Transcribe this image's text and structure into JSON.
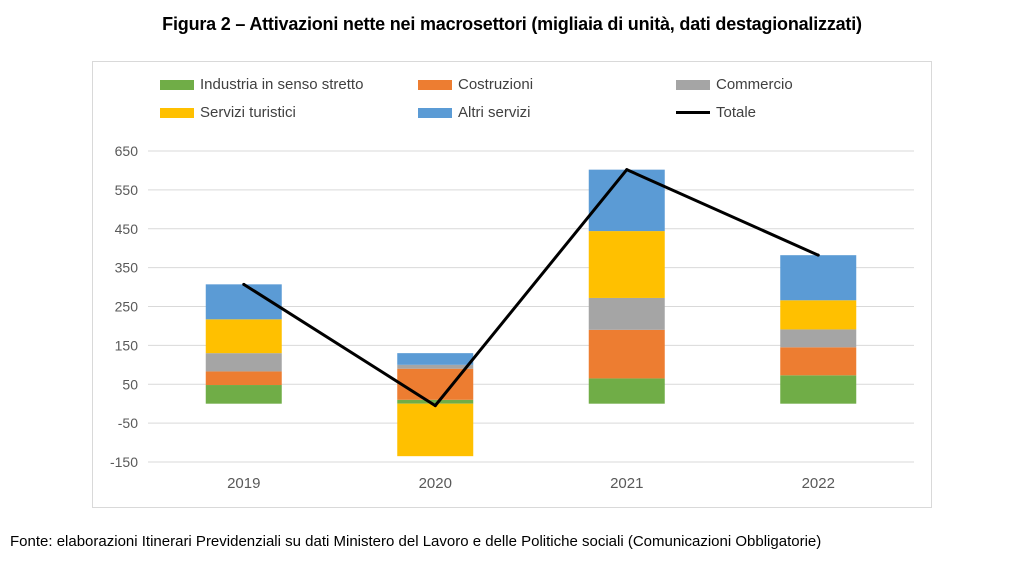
{
  "title": "Figura 2 – Attivazioni nette nei macrosettori (migliaia di unità, dati destagionalizzati)",
  "source": "Fonte: elaborazioni Itinerari Previdenziali su dati Ministero del Lavoro e delle Politiche sociali (Comunicazioni Obbligatorie)",
  "colors": {
    "industria": "#70ad47",
    "costruzioni": "#ed7d31",
    "commercio": "#a5a5a5",
    "servizi_turistici": "#ffc000",
    "altri_servizi": "#5b9bd5",
    "totale": "#000000",
    "grid": "#d9d9d9",
    "axis_text": "#595959"
  },
  "chart_data": {
    "type": "bar",
    "stacked": true,
    "categories": [
      "2019",
      "2020",
      "2021",
      "2022"
    ],
    "series": [
      {
        "name": "Industria in senso stretto",
        "color_key": "industria",
        "values": [
          48,
          10,
          65,
          73
        ]
      },
      {
        "name": "Costruzioni",
        "color_key": "costruzioni",
        "values": [
          35,
          80,
          125,
          72
        ]
      },
      {
        "name": "Commercio",
        "color_key": "commercio",
        "values": [
          47,
          10,
          82,
          46
        ]
      },
      {
        "name": "Servizi turistici",
        "color_key": "servizi_turistici",
        "values": [
          87,
          -135,
          172,
          75
        ]
      },
      {
        "name": "Altri servizi",
        "color_key": "altri_servizi",
        "values": [
          90,
          30,
          158,
          116
        ]
      }
    ],
    "line_series": {
      "name": "Totale",
      "color_key": "totale",
      "values": [
        307,
        -5,
        602,
        382
      ]
    },
    "ylim": [
      -150,
      650
    ],
    "yticks": [
      650,
      550,
      450,
      350,
      250,
      150,
      50,
      -50,
      -150
    ],
    "grid": true,
    "legend_position": "top",
    "xlabel": "",
    "ylabel": ""
  }
}
